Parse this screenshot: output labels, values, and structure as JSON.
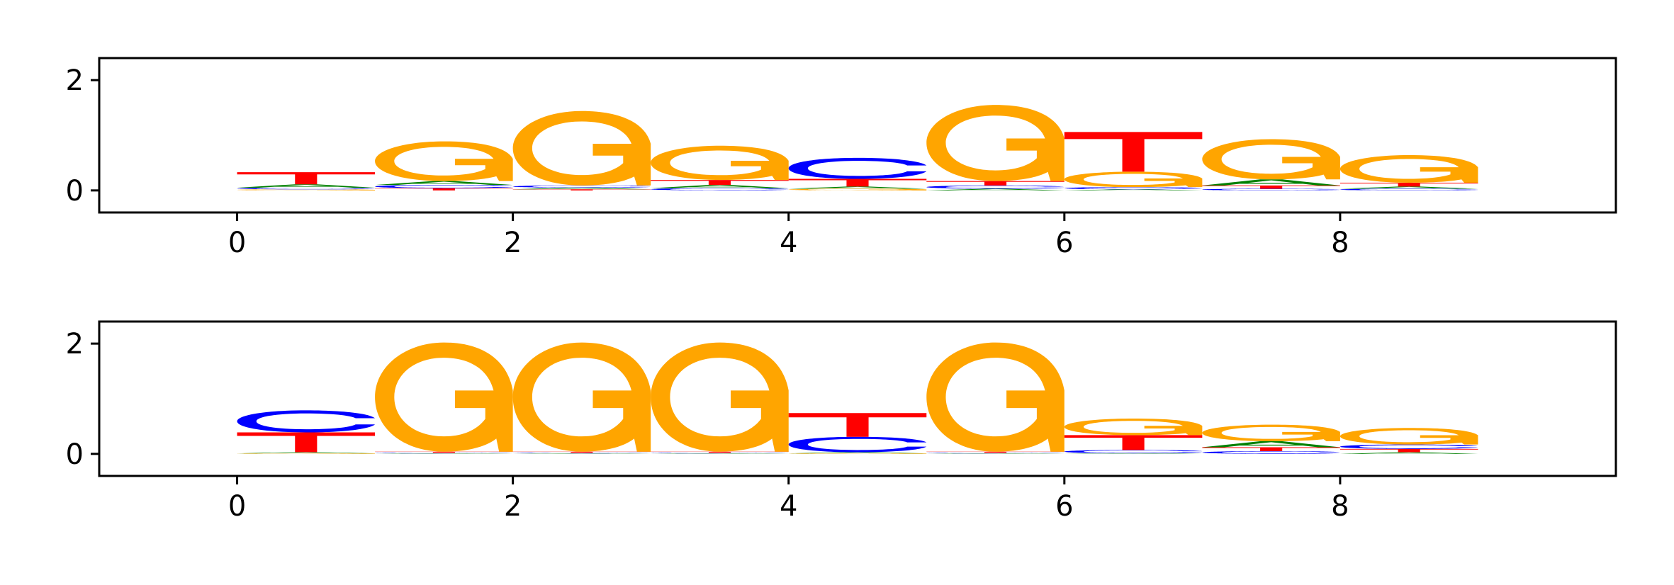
{
  "colors": {
    "A": "#008000",
    "C": "#0000ff",
    "G": "#ffa500",
    "T": "#ff0000"
  },
  "chart_data": [
    {
      "type": "sequence-logo",
      "xlim": [
        -1,
        10
      ],
      "ylim": [
        -0.4,
        2.4
      ],
      "xticks": [
        0,
        2,
        4,
        6,
        8
      ],
      "yticks": [
        0,
        2
      ],
      "columns": [
        {
          "A": 0.06,
          "C": 0.03,
          "G": 0.02,
          "T": 0.22
        },
        {
          "A": 0.07,
          "C": 0.06,
          "G": 0.72,
          "T": 0.04
        },
        {
          "A": 0.03,
          "C": 0.04,
          "G": 1.35,
          "T": 0.02
        },
        {
          "A": 0.06,
          "C": 0.04,
          "G": 0.62,
          "T": 0.09
        },
        {
          "A": 0.04,
          "C": 0.38,
          "G": 0.03,
          "T": 0.14
        },
        {
          "A": 0.03,
          "C": 0.06,
          "G": 1.38,
          "T": 0.08
        },
        {
          "A": 0.02,
          "C": 0.04,
          "G": 0.28,
          "T": 0.72
        },
        {
          "A": 0.11,
          "C": 0.03,
          "G": 0.73,
          "T": 0.06
        },
        {
          "A": 0.04,
          "C": 0.03,
          "G": 0.5,
          "T": 0.07
        }
      ]
    },
    {
      "type": "sequence-logo",
      "xlim": [
        -1,
        10
      ],
      "ylim": [
        -0.4,
        2.4
      ],
      "xticks": [
        0,
        2,
        4,
        6,
        8
      ],
      "yticks": [
        0,
        2
      ],
      "columns": [
        {
          "A": 0.02,
          "C": 0.4,
          "G": 0.01,
          "T": 0.36
        },
        {
          "A": 0.01,
          "C": 0.01,
          "G": 1.98,
          "T": 0.02
        },
        {
          "A": 0.01,
          "C": 0.01,
          "G": 1.98,
          "T": 0.02
        },
        {
          "A": 0.01,
          "C": 0.01,
          "G": 1.98,
          "T": 0.02
        },
        {
          "A": 0.02,
          "C": 0.28,
          "G": 0.01,
          "T": 0.43
        },
        {
          "A": 0.01,
          "C": 0.01,
          "G": 1.98,
          "T": 0.02
        },
        {
          "A": 0.01,
          "C": 0.06,
          "G": 0.3,
          "T": 0.27
        },
        {
          "A": 0.11,
          "C": 0.05,
          "G": 0.3,
          "T": 0.07
        },
        {
          "A": 0.03,
          "C": 0.08,
          "G": 0.3,
          "T": 0.06
        }
      ]
    }
  ]
}
